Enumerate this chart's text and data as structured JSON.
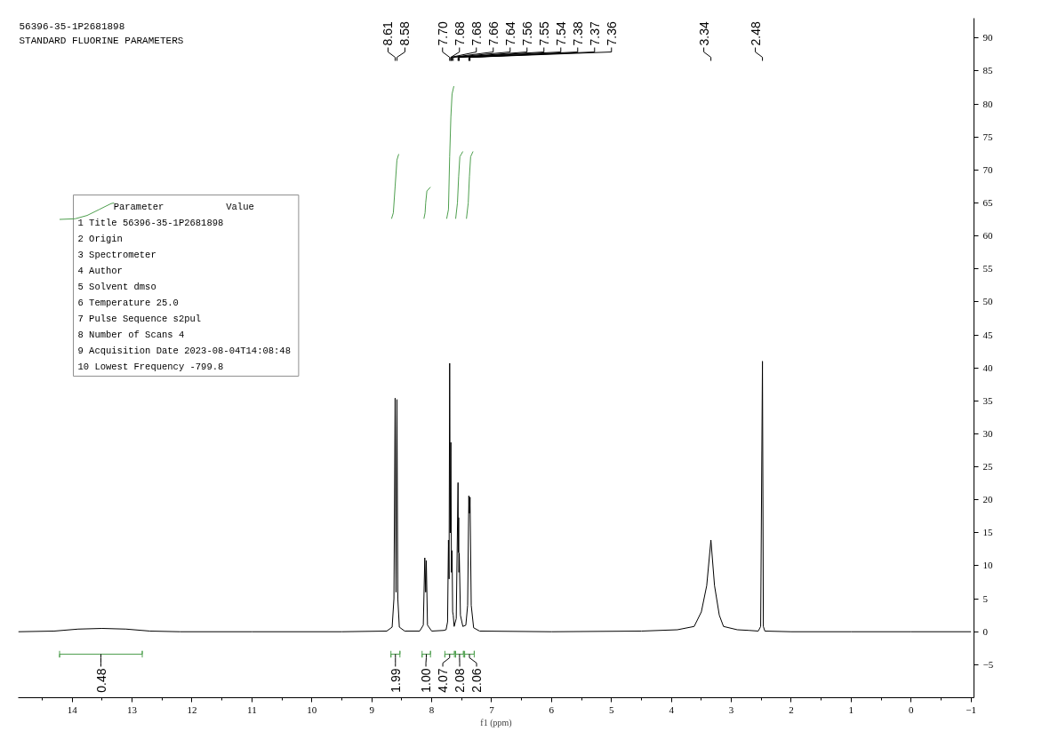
{
  "chart_data": {
    "type": "line",
    "title": "56396-35-1P2681898",
    "subtitle": "STANDARD FLUORINE PARAMETERS",
    "xlabel": "f1 (ppm)",
    "xlim": [
      14.9,
      -1.05
    ],
    "ylim": [
      -10,
      93
    ],
    "xticks": [
      {
        "value": 14.5,
        "label": null
      },
      14,
      {
        "value": 13.5,
        "label": null
      },
      13,
      {
        "value": 12.5,
        "label": null
      },
      12,
      {
        "value": 11.5,
        "label": null
      },
      11,
      {
        "value": 10.5,
        "label": null
      },
      10,
      {
        "value": 9.5,
        "label": null
      },
      9,
      {
        "value": 8.5,
        "label": null
      },
      8,
      {
        "value": 7.5,
        "label": null
      },
      7,
      {
        "value": 6.5,
        "label": null
      },
      6,
      {
        "value": 5.5,
        "label": null
      },
      5,
      {
        "value": 4.5,
        "label": null
      },
      4,
      {
        "value": 3.5,
        "label": null
      },
      3,
      {
        "value": 2.5,
        "label": null
      },
      2,
      {
        "value": 1.5,
        "label": null
      },
      1,
      {
        "value": 0.5,
        "label": null
      },
      0,
      {
        "value": -0.5,
        "label": null
      },
      -1
    ],
    "yticks": [
      -5,
      0,
      5,
      10,
      15,
      20,
      25,
      30,
      35,
      40,
      45,
      50,
      55,
      60,
      65,
      70,
      75,
      80,
      85,
      90
    ],
    "series": [
      {
        "color": "#000000",
        "x": [
          14.9,
          14.3,
          13.9,
          13.5,
          13.1,
          12.7,
          12.2,
          11,
          9.5,
          8.75,
          8.66,
          8.63,
          8.61,
          8.595,
          8.58,
          8.565,
          8.54,
          8.45,
          8.2,
          8.14,
          8.115,
          8.1,
          8.09,
          8.07,
          8.0,
          7.8,
          7.76,
          7.735,
          7.72,
          7.71,
          7.7,
          7.69,
          7.68,
          7.67,
          7.66,
          7.65,
          7.64,
          7.625,
          7.59,
          7.56,
          7.555,
          7.55,
          7.545,
          7.54,
          7.52,
          7.48,
          7.43,
          7.4,
          7.38,
          7.375,
          7.37,
          7.365,
          7.36,
          7.34,
          7.3,
          7.2,
          6,
          4.5,
          3.9,
          3.62,
          3.5,
          3.41,
          3.34,
          3.28,
          3.2,
          3.13,
          2.9,
          2.7,
          2.55,
          2.51,
          2.48,
          2.465,
          2.44,
          2.0,
          1.0,
          0,
          -1.0
        ],
        "values": [
          0,
          0.1,
          0.4,
          0.5,
          0.4,
          0.1,
          0,
          0,
          0,
          0.1,
          0.7,
          5,
          35.4,
          6,
          35.2,
          5,
          0.7,
          0.1,
          0.1,
          1,
          11.2,
          6,
          10.8,
          1,
          0.1,
          0.2,
          0.3,
          1.5,
          13.9,
          8,
          40.7,
          15,
          28.7,
          9,
          12.3,
          3,
          2.5,
          0.8,
          2,
          22.6,
          12,
          17.3,
          9,
          11.9,
          2.5,
          0.8,
          1,
          4,
          20.6,
          18,
          19.5,
          18,
          20.4,
          4,
          0.6,
          0.1,
          0,
          0.1,
          0.3,
          0.8,
          3,
          7,
          13.9,
          7,
          2.5,
          0.8,
          0.3,
          0.2,
          0.1,
          0.8,
          41,
          0.8,
          0.1,
          0,
          0,
          0,
          0
        ]
      },
      {
        "color": "#4e9f4e",
        "x": [
          14.21,
          13.95,
          13.75,
          13.55,
          13.35,
          13.3
        ],
        "values": [
          62.5,
          62.6,
          63.1,
          64.0,
          64.9,
          65.0
        ]
      },
      {
        "color": "#4e9f4e",
        "x": [
          8.67,
          8.64,
          8.61,
          8.58,
          8.55
        ],
        "values": [
          62.6,
          63.5,
          67.5,
          71.5,
          72.4
        ]
      },
      {
        "color": "#4e9f4e",
        "x": [
          8.13,
          8.11,
          8.1,
          8.08,
          8.02
        ],
        "values": [
          62.6,
          63.5,
          65,
          66.8,
          67.4
        ]
      },
      {
        "color": "#4e9f4e",
        "x": [
          7.75,
          7.72,
          7.7,
          7.68,
          7.66,
          7.63
        ],
        "values": [
          62.6,
          64,
          72,
          78,
          81.5,
          82.7
        ]
      },
      {
        "color": "#4e9f4e",
        "x": [
          7.6,
          7.57,
          7.55,
          7.53,
          7.48
        ],
        "values": [
          62.6,
          65,
          69,
          72,
          72.8
        ]
      },
      {
        "color": "#4e9f4e",
        "x": [
          7.42,
          7.39,
          7.37,
          7.35,
          7.31
        ],
        "values": [
          62.6,
          65,
          69,
          72,
          72.8
        ]
      },
      {
        "color": "#4e9f4e",
        "x": [
          14.21,
          14.21,
          14.21,
          12.83,
          12.83,
          12.83
        ],
        "values": [
          -2.9,
          -3.9,
          -3.4,
          -3.4,
          -2.9,
          -3.9
        ]
      },
      {
        "color": "#4e9f4e",
        "x": [
          8.68,
          8.68,
          8.68,
          8.53,
          8.53,
          8.53
        ],
        "values": [
          -2.9,
          -3.9,
          -3.4,
          -3.4,
          -2.9,
          -3.9
        ]
      },
      {
        "color": "#4e9f4e",
        "x": [
          8.16,
          8.16,
          8.16,
          8.02,
          8.02,
          8.02
        ],
        "values": [
          -2.9,
          -3.9,
          -3.4,
          -3.4,
          -2.9,
          -3.9
        ]
      },
      {
        "color": "#4e9f4e",
        "x": [
          7.78,
          7.78,
          7.78,
          7.62,
          7.62,
          7.62
        ],
        "values": [
          -2.9,
          -3.9,
          -3.4,
          -3.4,
          -2.9,
          -3.9
        ]
      },
      {
        "color": "#4e9f4e",
        "x": [
          7.6,
          7.6,
          7.6,
          7.47,
          7.47,
          7.47
        ],
        "values": [
          -2.9,
          -3.9,
          -3.4,
          -3.4,
          -2.9,
          -3.9
        ]
      },
      {
        "color": "#4e9f4e",
        "x": [
          7.45,
          7.45,
          7.45,
          7.29,
          7.29,
          7.29
        ],
        "values": [
          -2.9,
          -3.9,
          -3.4,
          -3.4,
          -2.9,
          -3.9
        ]
      }
    ],
    "annotations": [
      "Parameter",
      "Value",
      "1 Title 56396-35-1P2681898",
      "2 Origin",
      "3 Spectrometer",
      "4 Author",
      "5 Solvent dmso",
      "6 Temperature 25.0",
      "7 Pulse Sequence s2pul",
      "8 Number of Scans 4",
      "9 Acquisition Date 2023-08-04T14:08:48",
      "10 Lowest Frequency -799.8",
      "8.61",
      "8.58",
      "7.70",
      "7.68",
      "7.68",
      "7.66",
      "7.64",
      "7.56",
      "7.55",
      "7.54",
      "7.38",
      "7.37",
      "7.36",
      "3.34",
      "2.48",
      {
        "text": "0.48",
        "x": 13.52,
        "y": -3.4
      },
      {
        "text": "1.99",
        "x": 8.605,
        "y": -3.4
      },
      {
        "text": "1.00",
        "x": 8.09,
        "y": -3.4
      },
      {
        "text": "4.07",
        "x": 7.7,
        "y": -3.4
      },
      {
        "text": "2.08",
        "x": 7.535,
        "y": -3.4
      },
      {
        "text": "2.06",
        "x": 7.37,
        "y": -3.4
      }
    ]
  }
}
